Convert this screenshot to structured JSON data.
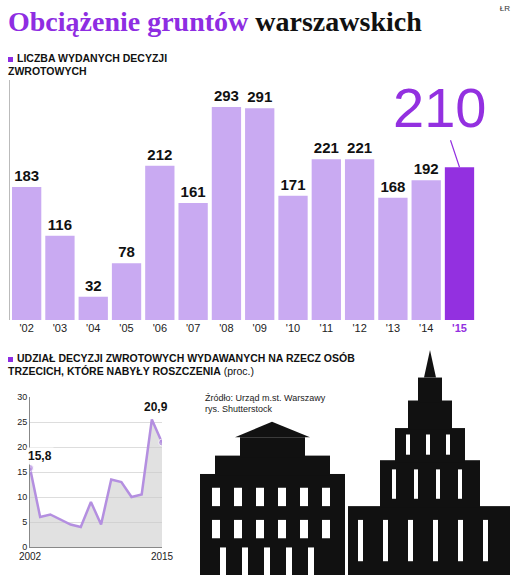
{
  "title": "Obciążenie gruntów warszawskich",
  "credit": "ŁR",
  "source": "Źródło: Urząd m.st. Warszawy",
  "illustration": "rys. Shutterstock",
  "chart_data": [
    {
      "type": "bar",
      "subtitle": "LICZBA WYDANYCH DECYZJI ZWROTOWYCH",
      "categories": [
        "'02",
        "'03",
        "'04",
        "'05",
        "'06",
        "'07",
        "'08",
        "'09",
        "'10",
        "'11",
        "'12",
        "'13",
        "'14",
        "'15"
      ],
      "values": [
        183,
        116,
        32,
        78,
        212,
        161,
        293,
        291,
        171,
        221,
        221,
        168,
        192,
        210
      ],
      "colors": [
        "#c9aaf2",
        "#c9aaf2",
        "#c9aaf2",
        "#c9aaf2",
        "#c9aaf2",
        "#c9aaf2",
        "#c9aaf2",
        "#c9aaf2",
        "#c9aaf2",
        "#c9aaf2",
        "#c9aaf2",
        "#c9aaf2",
        "#c9aaf2",
        "#9330e0"
      ],
      "ylim": [
        0,
        330
      ],
      "tick_labels": "x",
      "data_labels": true,
      "grid": false
    },
    {
      "type": "line",
      "subtitle": "UDZIAŁ DECYZJI ZWROTOWYCH WYDAWANYCH NA RZECZ OSÓB TRZECICH, KTÓRE NABYŁY ROSZCZENIA",
      "unit": "(proc.)",
      "x": [
        2002,
        2003,
        2004,
        2005,
        2006,
        2007,
        2008,
        2009,
        2010,
        2011,
        2012,
        2013,
        2014,
        2015
      ],
      "values": [
        15.8,
        6.0,
        6.5,
        5.5,
        4.5,
        4.0,
        9.0,
        4.5,
        13.5,
        13.0,
        10.0,
        10.5,
        25.5,
        20.9
      ],
      "value_labels": [
        "15,8",
        null,
        null,
        null,
        null,
        null,
        null,
        null,
        null,
        null,
        null,
        null,
        null,
        "20,9"
      ],
      "color": "#b48fe0",
      "xlim": [
        2002,
        2015
      ],
      "xticks": [
        2002,
        2015
      ],
      "ylim": [
        0,
        30
      ],
      "yticks": [
        0,
        5,
        10,
        15,
        20,
        25,
        30
      ],
      "grid": true,
      "data_labels": true
    }
  ]
}
